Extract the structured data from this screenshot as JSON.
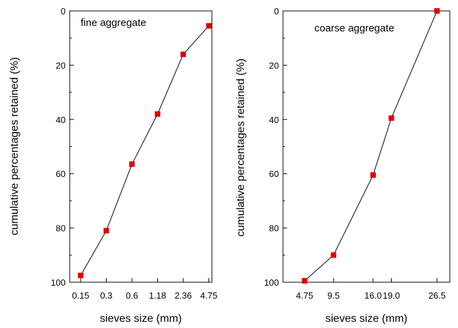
{
  "chart_data": [
    {
      "type": "line",
      "annotation": "fine aggregate",
      "xlabel": "sieves size (mm)",
      "ylabel": "cumulative percentages  retained (%)",
      "categories": [
        "0.15",
        "0.3",
        "0.6",
        "1.18",
        "2.36",
        "4.75"
      ],
      "values": [
        97.5,
        81,
        56.5,
        38,
        16,
        5.5
      ],
      "ylim": [
        0,
        100
      ],
      "y_inverted": true,
      "y_ticks": [
        0,
        20,
        40,
        60,
        80,
        100
      ],
      "grid": false,
      "marker_color": "#e00000",
      "line_color": "#000000"
    },
    {
      "type": "line",
      "annotation": "coarse aggregate",
      "xlabel": "sieves size (mm)",
      "ylabel": "cumulative percentages  retained (%)",
      "x_ticks": [
        "4.75",
        "9.5",
        "16.0",
        "19.0",
        "26.5"
      ],
      "x": [
        4.75,
        9.5,
        16.0,
        19.0,
        26.5
      ],
      "values": [
        99.5,
        90,
        60.5,
        39.5,
        0
      ],
      "ylim": [
        0,
        100
      ],
      "y_inverted": true,
      "y_ticks": [
        0,
        20,
        40,
        60,
        80,
        100
      ],
      "grid": false,
      "marker_color": "#e00000",
      "line_color": "#000000"
    }
  ]
}
